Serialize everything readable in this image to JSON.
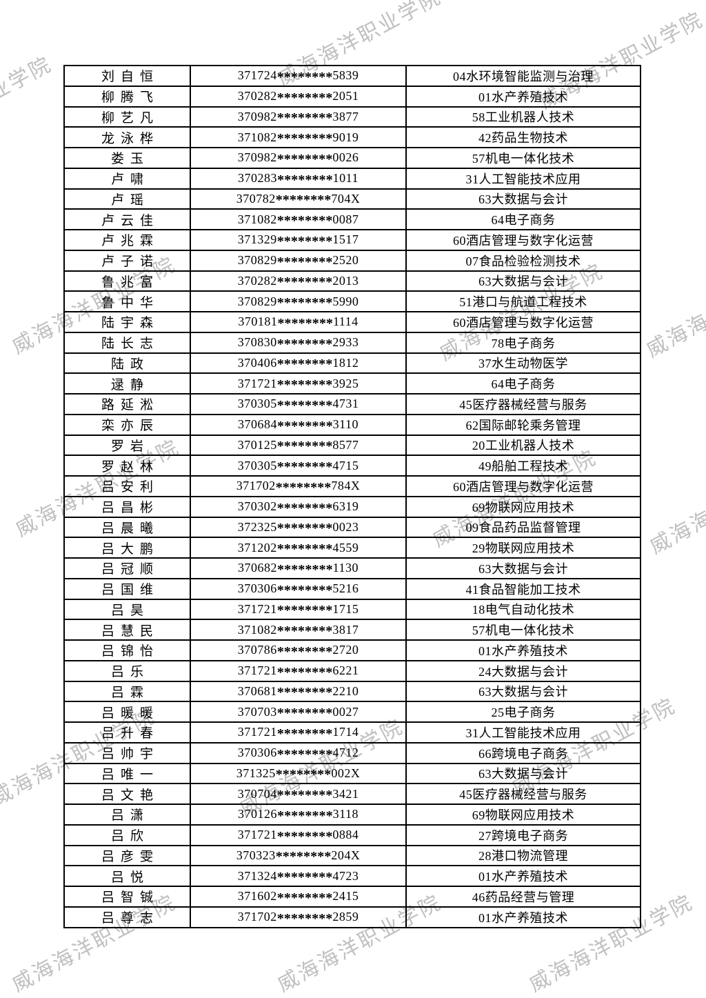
{
  "page": {
    "background": "#ffffff"
  },
  "watermark": {
    "text": "威海海洋职业学院",
    "color": "#c0c0c0"
  },
  "table": {
    "border_color": "#000000",
    "rows": [
      {
        "name": "刘自恒",
        "id": "371724********5839",
        "major": "04水环境智能监测与治理"
      },
      {
        "name": "柳腾飞",
        "id": "370282********2051",
        "major": "01水产养殖技术"
      },
      {
        "name": "柳艺凡",
        "id": "370982********3877",
        "major": "58工业机器人技术"
      },
      {
        "name": "龙泳桦",
        "id": "371082********9019",
        "major": "42药品生物技术"
      },
      {
        "name": "娄玉",
        "id": "370982********0026",
        "major": "57机电一体化技术"
      },
      {
        "name": "卢啸",
        "id": "370283********1011",
        "major": "31人工智能技术应用"
      },
      {
        "name": "卢瑶",
        "id": "370782********704X",
        "major": "63大数据与会计"
      },
      {
        "name": "卢云佳",
        "id": "371082********0087",
        "major": "64电子商务"
      },
      {
        "name": "卢兆霖",
        "id": "371329********1517",
        "major": "60酒店管理与数字化运营"
      },
      {
        "name": "卢子诺",
        "id": "370829********2520",
        "major": "07食品检验检测技术"
      },
      {
        "name": "鲁兆富",
        "id": "370282********2013",
        "major": "63大数据与会计"
      },
      {
        "name": "鲁中华",
        "id": "370829********5990",
        "major": "51港口与航道工程技术"
      },
      {
        "name": "陆宇森",
        "id": "370181********1114",
        "major": "60酒店管理与数字化运营"
      },
      {
        "name": "陆长志",
        "id": "370830********2933",
        "major": "78电子商务"
      },
      {
        "name": "陆政",
        "id": "370406********1812",
        "major": "37水生动物医学"
      },
      {
        "name": "逯静",
        "id": "371721********3925",
        "major": "64电子商务"
      },
      {
        "name": "路延淞",
        "id": "370305********4731",
        "major": "45医疗器械经营与服务"
      },
      {
        "name": "栾亦辰",
        "id": "370684********3110",
        "major": "62国际邮轮乘务管理"
      },
      {
        "name": "罗岩",
        "id": "370125********8577",
        "major": "20工业机器人技术"
      },
      {
        "name": "罗赵林",
        "id": "370305********4715",
        "major": "49船舶工程技术"
      },
      {
        "name": "吕安利",
        "id": "371702********784X",
        "major": "60酒店管理与数字化运营"
      },
      {
        "name": "吕昌彬",
        "id": "370302********6319",
        "major": "69物联网应用技术"
      },
      {
        "name": "吕晨曦",
        "id": "372325********0023",
        "major": "09食品药品监督管理"
      },
      {
        "name": "吕大鹏",
        "id": "371202********4559",
        "major": "29物联网应用技术"
      },
      {
        "name": "吕冠顺",
        "id": "370682********1130",
        "major": "63大数据与会计"
      },
      {
        "name": "吕国维",
        "id": "370306********5216",
        "major": "41食品智能加工技术"
      },
      {
        "name": "吕昊",
        "id": "371721********1715",
        "major": "18电气自动化技术"
      },
      {
        "name": "吕慧民",
        "id": "371082********3817",
        "major": "57机电一体化技术"
      },
      {
        "name": "吕锦怡",
        "id": "370786********2720",
        "major": "01水产养殖技术"
      },
      {
        "name": "吕乐",
        "id": "371721********6221",
        "major": "24大数据与会计"
      },
      {
        "name": "吕霖",
        "id": "370681********2210",
        "major": "63大数据与会计"
      },
      {
        "name": "吕暖暖",
        "id": "370703********0027",
        "major": "25电子商务"
      },
      {
        "name": "吕升春",
        "id": "371721********1714",
        "major": "31人工智能技术应用"
      },
      {
        "name": "吕帅宇",
        "id": "370306********4712",
        "major": "66跨境电子商务"
      },
      {
        "name": "吕唯一",
        "id": "371325********002X",
        "major": "63大数据与会计"
      },
      {
        "name": "吕文艳",
        "id": "370704********3421",
        "major": "45医疗器械经营与服务"
      },
      {
        "name": "吕潇",
        "id": "370126********3118",
        "major": "69物联网应用技术"
      },
      {
        "name": "吕欣",
        "id": "371721********0884",
        "major": "27跨境电子商务"
      },
      {
        "name": "吕彦雯",
        "id": "370323********204X",
        "major": "28港口物流管理"
      },
      {
        "name": "吕悦",
        "id": "371324********4723",
        "major": "01水产养殖技术"
      },
      {
        "name": "吕智铖",
        "id": "371602********2415",
        "major": "46药品经营与管理"
      },
      {
        "name": "吕尊志",
        "id": "371702********2859",
        "major": "01水产养殖技术"
      }
    ]
  }
}
